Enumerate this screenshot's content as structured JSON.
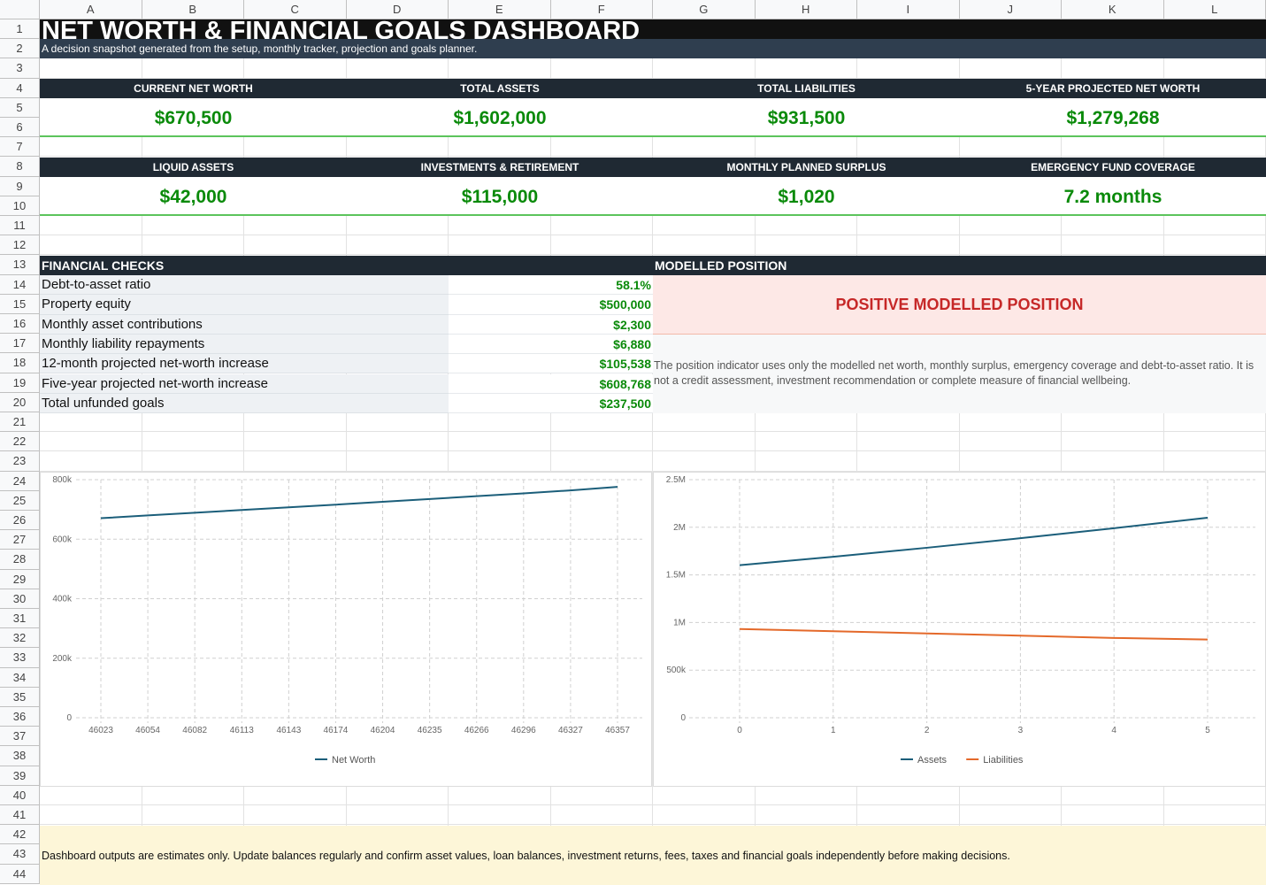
{
  "columns": [
    "A",
    "B",
    "C",
    "D",
    "E",
    "F",
    "G",
    "H",
    "I",
    "J",
    "K",
    "L"
  ],
  "rows": [
    "1",
    "2",
    "3",
    "4",
    "5",
    "6",
    "7",
    "8",
    "9",
    "10",
    "11",
    "12",
    "13",
    "14",
    "15",
    "16",
    "17",
    "18",
    "19",
    "20",
    "21",
    "22",
    "23",
    "24",
    "25",
    "26",
    "27",
    "28",
    "29",
    "30",
    "31",
    "32",
    "33",
    "34",
    "35",
    "36",
    "37",
    "38",
    "39",
    "40",
    "41",
    "42",
    "43",
    "44"
  ],
  "header": {
    "title": "NET WORTH & FINANCIAL GOALS DASHBOARD",
    "subtitle": "A decision snapshot generated from the setup, monthly tracker, projection and goals planner."
  },
  "kpis_row1": [
    {
      "label": "CURRENT NET WORTH",
      "value": "$670,500"
    },
    {
      "label": "TOTAL ASSETS",
      "value": "$1,602,000"
    },
    {
      "label": "TOTAL LIABILITIES",
      "value": "$931,500"
    },
    {
      "label": "5-YEAR PROJECTED NET WORTH",
      "value": "$1,279,268"
    }
  ],
  "kpis_row2": [
    {
      "label": "LIQUID ASSETS",
      "value": "$42,000"
    },
    {
      "label": "INVESTMENTS & RETIREMENT",
      "value": "$115,000"
    },
    {
      "label": "MONTHLY PLANNED SURPLUS",
      "value": "$1,020"
    },
    {
      "label": "EMERGENCY FUND COVERAGE",
      "value": "7.2 months"
    }
  ],
  "checks": {
    "heading": "FINANCIAL CHECKS",
    "items": [
      {
        "label": "Debt-to-asset ratio",
        "value": "58.1%"
      },
      {
        "label": "Property equity",
        "value": "$500,000"
      },
      {
        "label": "Monthly asset contributions",
        "value": "$2,300"
      },
      {
        "label": "Monthly liability repayments",
        "value": "$6,880"
      },
      {
        "label": "12-month projected net-worth increase",
        "value": "$105,538"
      },
      {
        "label": "Five-year projected net-worth increase",
        "value": "$608,768"
      },
      {
        "label": "Total unfunded goals",
        "value": "$237,500"
      }
    ]
  },
  "position": {
    "heading": "MODELLED POSITION",
    "status": "POSITIVE MODELLED POSITION",
    "status_bg": "#fde8e6",
    "status_color": "#c62828",
    "note": "The position indicator uses only the modelled net worth, monthly surplus, emergency coverage and debt-to-asset ratio. It is not a credit assessment, investment recommendation or complete measure of financial wellbeing."
  },
  "footer": {
    "note": "Dashboard outputs are estimates only. Update balances regularly and confirm asset values, loan balances, investment returns, fees, taxes and financial goals independently before making decisions.",
    "bg": "#fdf6d8"
  },
  "colors": {
    "dark": "#1f2933",
    "subtitle_bar": "#2f3e4f",
    "kpi_value": "#0a8a0a",
    "series_blue": "#1b5e7a",
    "series_orange": "#e4692a"
  },
  "chart_data": [
    {
      "type": "line",
      "x": [
        "46023",
        "46054",
        "46082",
        "46113",
        "46143",
        "46174",
        "46204",
        "46235",
        "46266",
        "46296",
        "46327",
        "46357"
      ],
      "series": [
        {
          "name": "Net Worth",
          "values": [
            670500,
            680000,
            689000,
            698000,
            707000,
            716000,
            725500,
            735000,
            744500,
            754000,
            764000,
            776000
          ]
        }
      ],
      "ylim": [
        0,
        800000
      ],
      "yticks": [
        "0",
        "200k",
        "400k",
        "600k",
        "800k"
      ],
      "grid": true,
      "legend": "bottom"
    },
    {
      "type": "line",
      "x": [
        "0",
        "1",
        "2",
        "3",
        "4",
        "5"
      ],
      "series": [
        {
          "name": "Assets",
          "values": [
            1602000,
            1690000,
            1785000,
            1885000,
            1990000,
            2100000
          ]
        },
        {
          "name": "Liabilities",
          "values": [
            931500,
            909000,
            885000,
            862000,
            838000,
            821000
          ]
        }
      ],
      "ylim": [
        0,
        2500000
      ],
      "yticks": [
        "0",
        "500k",
        "1M",
        "1.5M",
        "2M",
        "2.5M"
      ],
      "grid": true,
      "legend": "bottom"
    }
  ]
}
